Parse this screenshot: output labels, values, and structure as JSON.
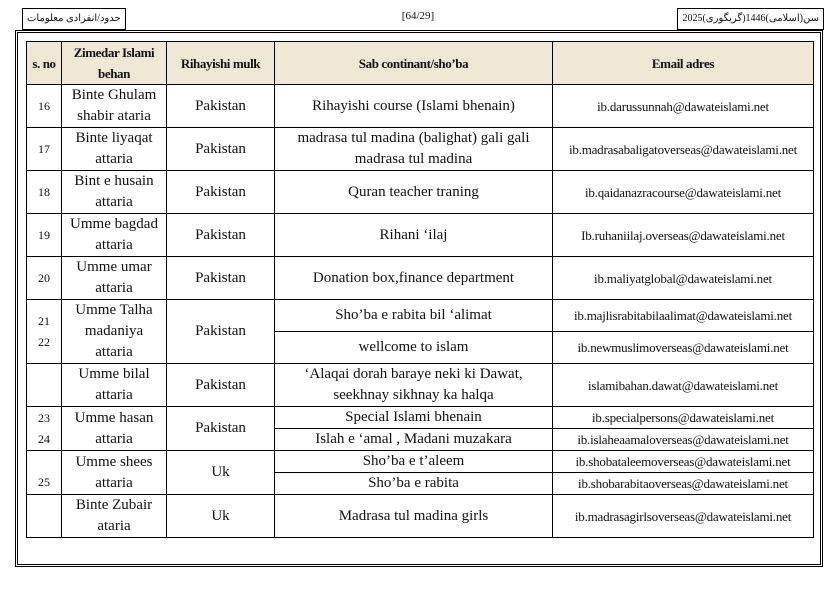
{
  "header": {
    "left": "حدود/انفرادی معلومات",
    "center": "[64/29]",
    "right": "سن(اسلامی)1446(گریگوری)2025"
  },
  "table": {
    "columns": [
      "s. no",
      "Zimedar Islami behan",
      "Rihayishi mulk",
      "Sab continant/sho’ba",
      "Email adres"
    ],
    "groups": [
      {
        "sno": [
          "16"
        ],
        "name": "Binte Ghulam shabir ataria",
        "country": "Pakistan",
        "items": [
          {
            "dept": "Rihayishi course  (Islami bhenain)",
            "email": "ib.darussunnah@dawateislami.net"
          }
        ]
      },
      {
        "sno": [
          "17"
        ],
        "name": "Binte liyaqat attaria",
        "country": "Pakistan",
        "items": [
          {
            "dept": "madrasa tul madina (balighat) gali gali madrasa tul madina",
            "email": "ib.madrasabaligatoverseas@dawateislami.net"
          }
        ]
      },
      {
        "sno": [
          "18"
        ],
        "name": "Bint e husain attaria",
        "country": "Pakistan",
        "items": [
          {
            "dept": "Quran teacher traning",
            "email": "ib.qaidanazracourse@dawateislami.net"
          }
        ]
      },
      {
        "sno": [
          "19"
        ],
        "name": "Umme bagdad attaria",
        "country": "Pakistan",
        "items": [
          {
            "dept": "Rihani ‘ilaj",
            "email": "Ib.ruhaniilaj.overseas@dawateislami.net"
          }
        ]
      },
      {
        "sno": [
          "20"
        ],
        "name": "Umme umar attaria",
        "country": "Pakistan",
        "items": [
          {
            "dept": "Donation box,finance department",
            "email": "ib.maliyatglobal@dawateislami.net"
          }
        ]
      },
      {
        "sno": [
          "21",
          "22"
        ],
        "name": "Umme Talha madaniya attaria",
        "country": "Pakistan",
        "items": [
          {
            "dept": "Sho’ba e rabita bil ‘alimat",
            "email": "ib.majlisrabitabilaalimat@dawateislami.net"
          },
          {
            "dept": "wellcome to islam",
            "email": "ib.newmuslimoverseas@dawateislami.net"
          }
        ]
      },
      {
        "sno": [],
        "name": "Umme bilal attaria",
        "country": "Pakistan",
        "items": [
          {
            "dept": "‘Alaqai dorah baraye neki ki Dawat, seekhnay sikhnay ka halqa",
            "email": "islamibahan.dawat@dawateislami.net"
          }
        ]
      },
      {
        "sno": [
          "23",
          "24"
        ],
        "name": "Umme hasan attaria",
        "country": "Pakistan",
        "items": [
          {
            "dept": "Special  Islami bhenain",
            "email": "ib.specialpersons@dawateislami.net"
          },
          {
            "dept": "Islah e ‘amal , Madani muzakara",
            "email": "ib.islaheaamaloverseas@dawateislami.net"
          }
        ]
      },
      {
        "sno": [
          "25"
        ],
        "name": "Umme shees attaria",
        "country": "Uk",
        "items": [
          {
            "dept": "Sho’ba e t’aleem",
            "email": "ib.shobataleemoverseas@dawateislami.net"
          },
          {
            "dept": "Sho’ba e rabita",
            "email": "ib.shobarabitaoverseas@dawateislami.net"
          }
        ]
      },
      {
        "sno": [],
        "name": "Binte Zubair ataria",
        "country": "Uk",
        "items": [
          {
            "dept": "Madrasa tul madina girls",
            "email": "ib.madrasagirlsoverseas@dawateislami.net"
          }
        ]
      }
    ]
  }
}
